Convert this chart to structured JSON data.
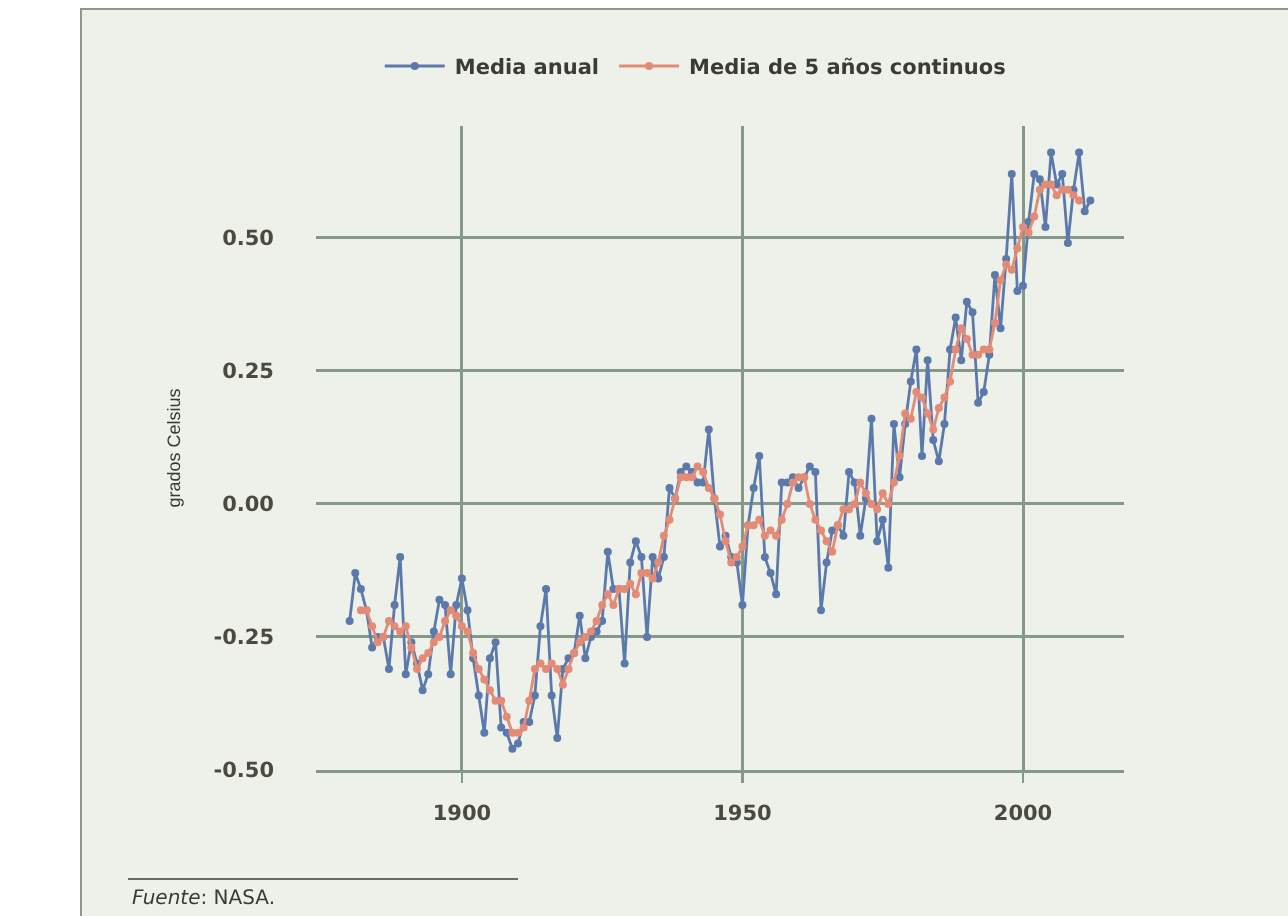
{
  "chart_data": {
    "type": "line",
    "ylabel": "grados Celsius",
    "annotations": [
      "Fuente: NASA."
    ],
    "xlim": [
      1874,
      2018
    ],
    "xticks": [
      1900,
      1950,
      2000
    ],
    "ylim": [
      -0.5,
      0.71
    ],
    "yticks": [
      {
        "value": -0.5,
        "label": "-0.50"
      },
      {
        "value": -0.25,
        "label": "-0.25"
      },
      {
        "value": 0,
        "label": "0.00"
      },
      {
        "value": 0.25,
        "label": "0.25"
      },
      {
        "value": 0.5,
        "label": "0.50"
      }
    ],
    "grid": true,
    "legend": "top",
    "marker": "circle",
    "line_style": "solid",
    "series": [
      {
        "name": "Media anual",
        "color": "#5b79ab",
        "x": [
          1880,
          1881,
          1882,
          1883,
          1884,
          1885,
          1886,
          1887,
          1888,
          1889,
          1890,
          1891,
          1892,
          1893,
          1894,
          1895,
          1896,
          1897,
          1898,
          1899,
          1900,
          1901,
          1902,
          1903,
          1904,
          1905,
          1906,
          1907,
          1908,
          1909,
          1910,
          1911,
          1912,
          1913,
          1914,
          1915,
          1916,
          1917,
          1918,
          1919,
          1920,
          1921,
          1922,
          1923,
          1924,
          1925,
          1926,
          1927,
          1928,
          1929,
          1930,
          1931,
          1932,
          1933,
          1934,
          1935,
          1936,
          1937,
          1938,
          1939,
          1940,
          1941,
          1942,
          1943,
          1944,
          1945,
          1946,
          1947,
          1948,
          1949,
          1950,
          1951,
          1952,
          1953,
          1954,
          1955,
          1956,
          1957,
          1958,
          1959,
          1960,
          1961,
          1962,
          1963,
          1964,
          1965,
          1966,
          1967,
          1968,
          1969,
          1970,
          1971,
          1972,
          1973,
          1974,
          1975,
          1976,
          1977,
          1978,
          1979,
          1980,
          1981,
          1982,
          1983,
          1984,
          1985,
          1986,
          1987,
          1988,
          1989,
          1990,
          1991,
          1992,
          1993,
          1994,
          1995,
          1996,
          1997,
          1998,
          1999,
          2000,
          2001,
          2002,
          2003,
          2004,
          2005,
          2006,
          2007,
          2008,
          2009,
          2010,
          2011,
          2012
        ],
        "values": [
          -0.22,
          -0.13,
          -0.16,
          -0.2,
          -0.27,
          -0.25,
          -0.25,
          -0.31,
          -0.19,
          -0.1,
          -0.32,
          -0.26,
          -0.3,
          -0.35,
          -0.32,
          -0.24,
          -0.18,
          -0.19,
          -0.32,
          -0.19,
          -0.14,
          -0.2,
          -0.29,
          -0.36,
          -0.43,
          -0.29,
          -0.26,
          -0.42,
          -0.43,
          -0.46,
          -0.45,
          -0.41,
          -0.41,
          -0.36,
          -0.23,
          -0.16,
          -0.36,
          -0.44,
          -0.31,
          -0.29,
          -0.28,
          -0.21,
          -0.29,
          -0.25,
          -0.24,
          -0.22,
          -0.09,
          -0.16,
          -0.16,
          -0.3,
          -0.11,
          -0.07,
          -0.1,
          -0.25,
          -0.1,
          -0.14,
          -0.1,
          0.03,
          0.01,
          0.06,
          0.07,
          0.06,
          0.04,
          0.04,
          0.14,
          0.01,
          -0.08,
          -0.06,
          -0.1,
          -0.11,
          -0.19,
          -0.04,
          0.03,
          0.09,
          -0.1,
          -0.13,
          -0.17,
          0.04,
          0.04,
          0.05,
          0.03,
          0.05,
          0.07,
          0.06,
          -0.2,
          -0.11,
          -0.05,
          -0.04,
          -0.06,
          0.06,
          0.04,
          -0.06,
          0.01,
          0.16,
          -0.07,
          -0.03,
          -0.12,
          0.15,
          0.05,
          0.15,
          0.23,
          0.29,
          0.09,
          0.27,
          0.12,
          0.08,
          0.15,
          0.29,
          0.35,
          0.27,
          0.38,
          0.36,
          0.19,
          0.21,
          0.28,
          0.43,
          0.33,
          0.46,
          0.62,
          0.4,
          0.41,
          0.53,
          0.62,
          0.61,
          0.52,
          0.66,
          0.6,
          0.62,
          0.49,
          0.59,
          0.66,
          0.55,
          0.57
        ]
      },
      {
        "name": "Media de 5 años continuos",
        "color": "#e38b76",
        "x": [
          1882,
          1883,
          1884,
          1885,
          1886,
          1887,
          1888,
          1889,
          1890,
          1891,
          1892,
          1893,
          1894,
          1895,
          1896,
          1897,
          1898,
          1899,
          1900,
          1901,
          1902,
          1903,
          1904,
          1905,
          1906,
          1907,
          1908,
          1909,
          1910,
          1911,
          1912,
          1913,
          1914,
          1915,
          1916,
          1917,
          1918,
          1919,
          1920,
          1921,
          1922,
          1923,
          1924,
          1925,
          1926,
          1927,
          1928,
          1929,
          1930,
          1931,
          1932,
          1933,
          1934,
          1935,
          1936,
          1937,
          1938,
          1939,
          1940,
          1941,
          1942,
          1943,
          1944,
          1945,
          1946,
          1947,
          1948,
          1949,
          1950,
          1951,
          1952,
          1953,
          1954,
          1955,
          1956,
          1957,
          1958,
          1959,
          1960,
          1961,
          1962,
          1963,
          1964,
          1965,
          1966,
          1967,
          1968,
          1969,
          1970,
          1971,
          1972,
          1973,
          1974,
          1975,
          1976,
          1977,
          1978,
          1979,
          1980,
          1981,
          1982,
          1983,
          1984,
          1985,
          1986,
          1987,
          1988,
          1989,
          1990,
          1991,
          1992,
          1993,
          1994,
          1995,
          1996,
          1997,
          1998,
          1999,
          2000,
          2001,
          2002,
          2003,
          2004,
          2005,
          2006,
          2007,
          2008,
          2009,
          2010
        ],
        "values": [
          -0.2,
          -0.2,
          -0.23,
          -0.26,
          -0.25,
          -0.22,
          -0.23,
          -0.24,
          -0.23,
          -0.27,
          -0.31,
          -0.29,
          -0.28,
          -0.26,
          -0.25,
          -0.22,
          -0.2,
          -0.21,
          -0.23,
          -0.24,
          -0.28,
          -0.31,
          -0.33,
          -0.35,
          -0.37,
          -0.37,
          -0.4,
          -0.43,
          -0.43,
          -0.42,
          -0.37,
          -0.31,
          -0.3,
          -0.31,
          -0.3,
          -0.31,
          -0.34,
          -0.31,
          -0.28,
          -0.26,
          -0.25,
          -0.24,
          -0.22,
          -0.19,
          -0.17,
          -0.19,
          -0.16,
          -0.16,
          -0.15,
          -0.17,
          -0.13,
          -0.13,
          -0.14,
          -0.11,
          -0.06,
          -0.03,
          0.01,
          0.05,
          0.05,
          0.05,
          0.07,
          0.06,
          0.03,
          0.01,
          -0.02,
          -0.07,
          -0.11,
          -0.1,
          -0.08,
          -0.04,
          -0.04,
          -0.03,
          -0.06,
          -0.05,
          -0.06,
          -0.03,
          0.0,
          0.04,
          0.05,
          0.05,
          0.0,
          -0.03,
          -0.05,
          -0.07,
          -0.09,
          -0.04,
          -0.01,
          -0.01,
          0.0,
          0.04,
          0.02,
          0.0,
          -0.01,
          0.02,
          0.0,
          0.04,
          0.09,
          0.17,
          0.16,
          0.21,
          0.2,
          0.17,
          0.14,
          0.18,
          0.2,
          0.23,
          0.29,
          0.33,
          0.31,
          0.28,
          0.28,
          0.29,
          0.29,
          0.34,
          0.42,
          0.45,
          0.44,
          0.48,
          0.52,
          0.51,
          0.54,
          0.59,
          0.6,
          0.6,
          0.58,
          0.59,
          0.59,
          0.58,
          0.57
        ]
      }
    ]
  }
}
